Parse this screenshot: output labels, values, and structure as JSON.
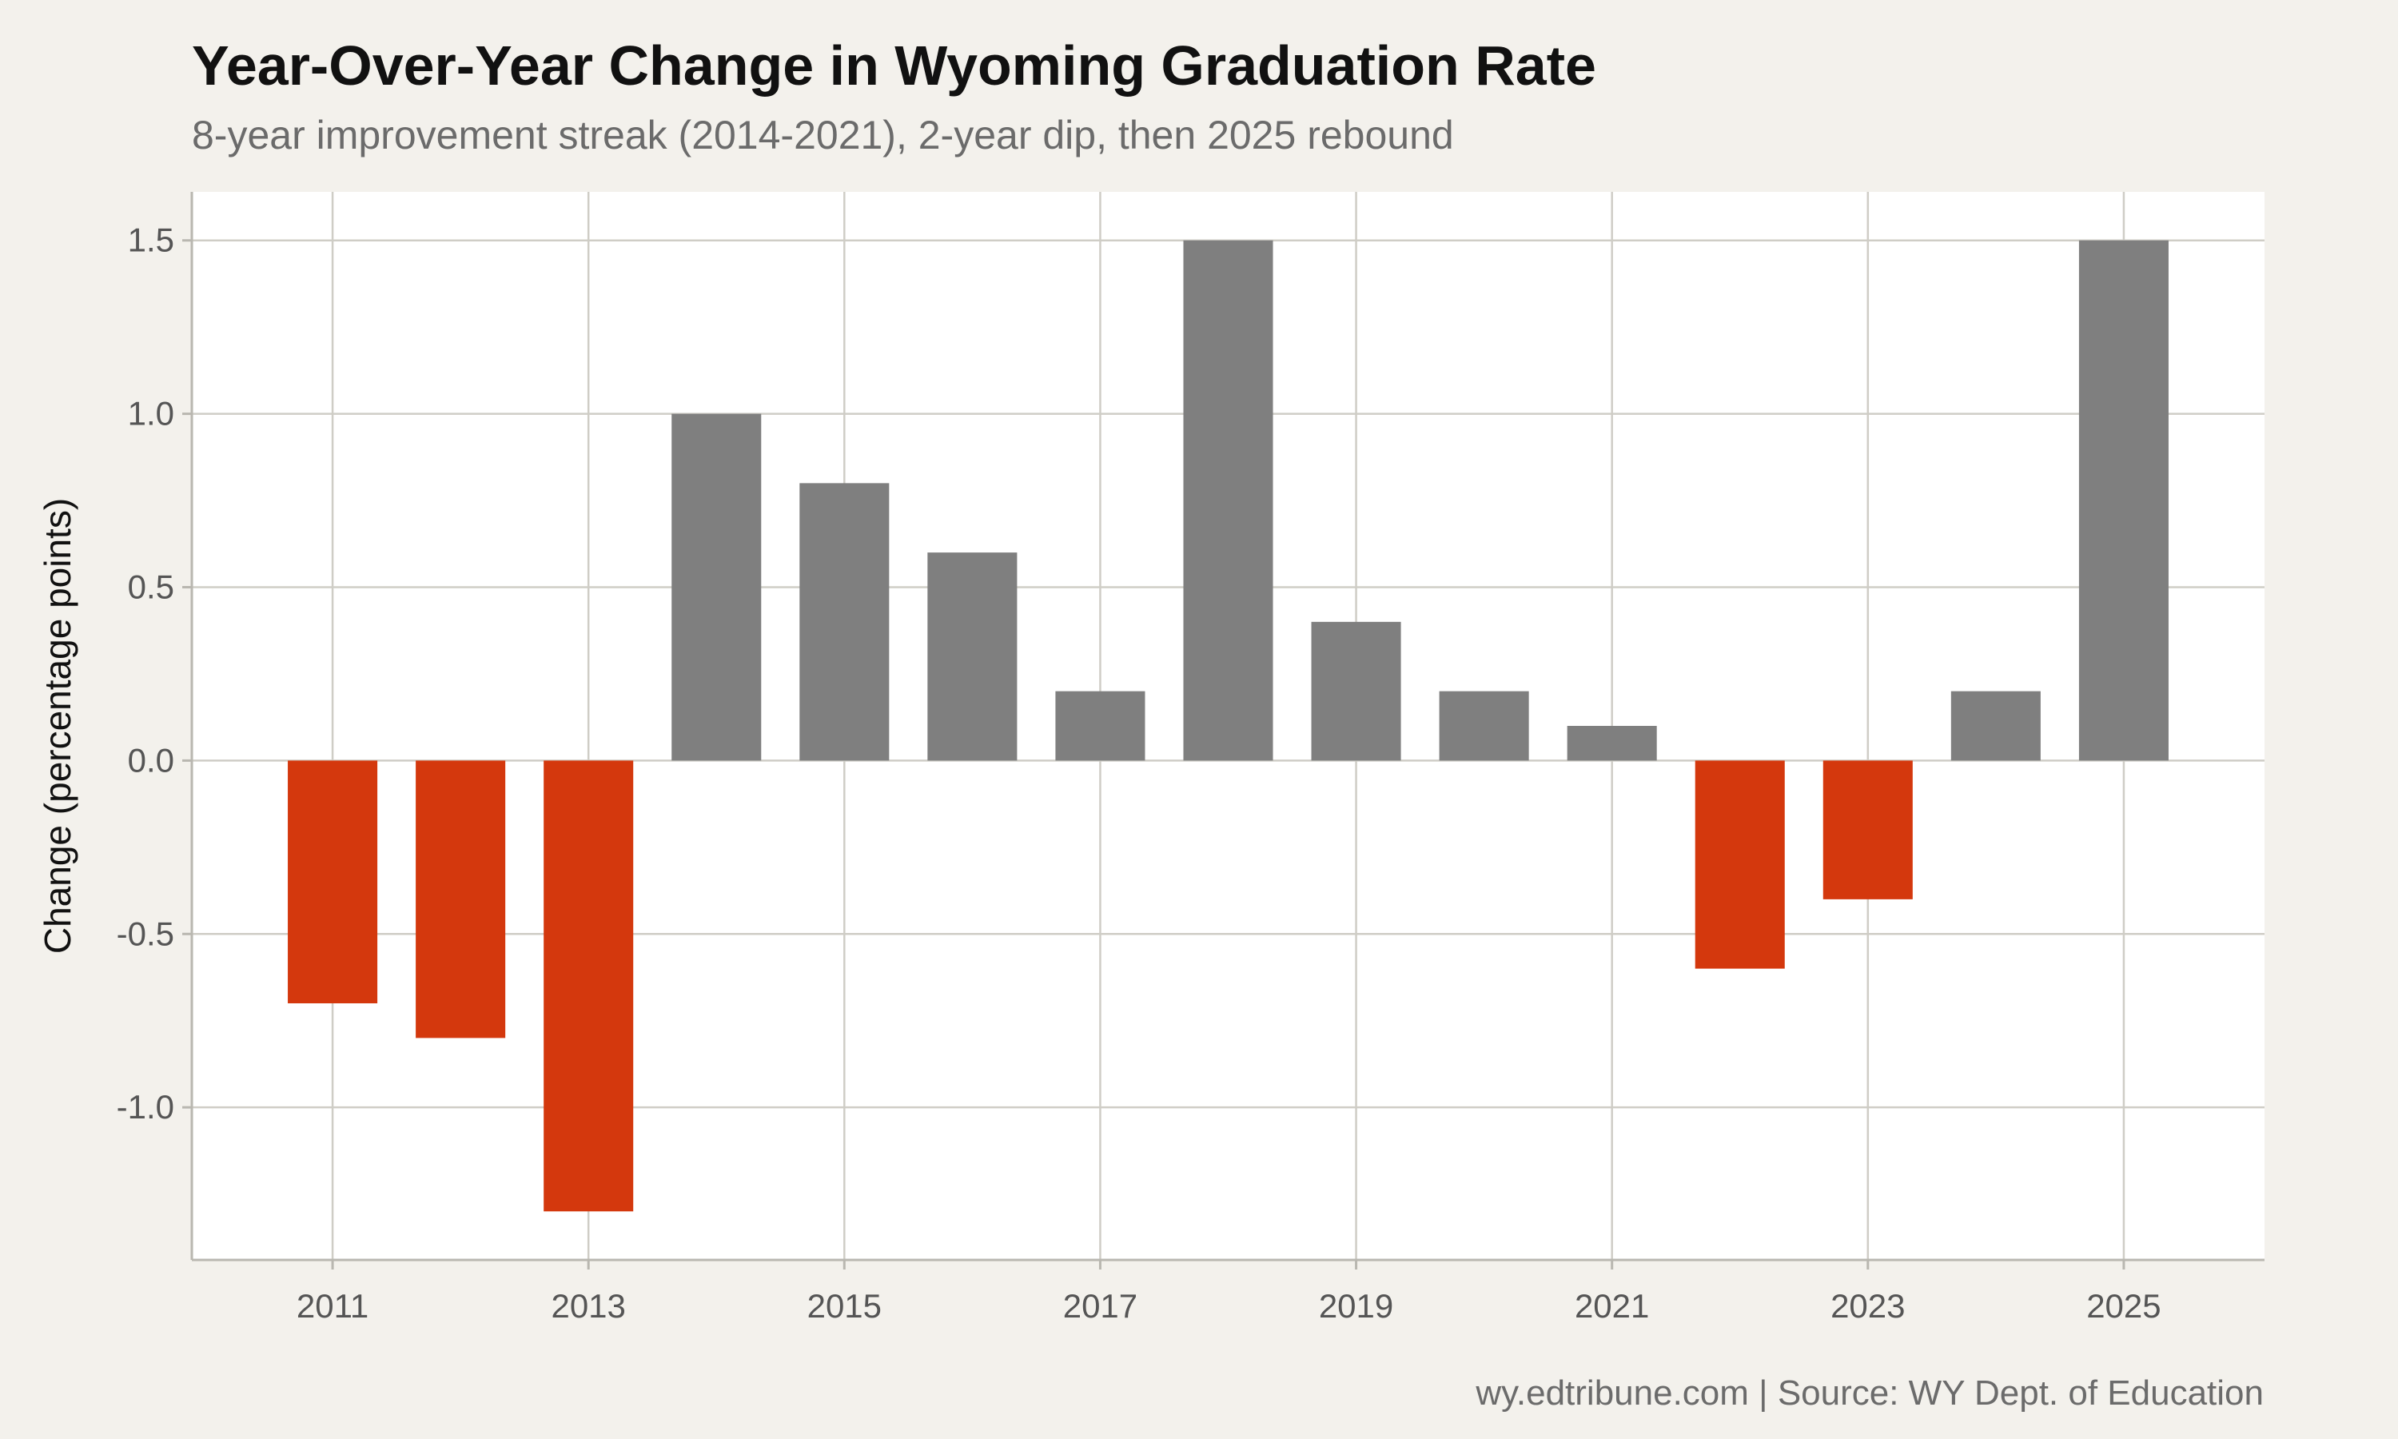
{
  "chart_data": {
    "type": "bar",
    "title": "Year-Over-Year Change in Wyoming Graduation Rate",
    "subtitle": "8-year improvement streak (2014-2021), 2-year dip, then 2025 rebound",
    "caption": "wy.edtribune.com | Source: WY Dept. of Education",
    "xlabel": "",
    "ylabel": "Change (percentage points)",
    "categories": [
      2011,
      2012,
      2013,
      2014,
      2015,
      2016,
      2017,
      2018,
      2019,
      2020,
      2021,
      2022,
      2023,
      2024,
      2025
    ],
    "values": [
      -0.7,
      -0.8,
      -1.3,
      1.0,
      0.8,
      0.6,
      0.2,
      1.5,
      0.4,
      0.2,
      0.1,
      -0.6,
      -0.4,
      0.2,
      1.5
    ],
    "ylim": [
      -1.44,
      1.64
    ],
    "yticks": [
      -1.0,
      -0.5,
      0.0,
      0.5,
      1.0,
      1.5
    ],
    "ytick_labels": [
      "-1.0",
      "-0.5",
      "0.0",
      "0.5",
      "1.0",
      "1.5"
    ],
    "xticks": [
      2011,
      2013,
      2015,
      2017,
      2019,
      2021,
      2023,
      2025
    ],
    "xtick_labels": [
      "2011",
      "2013",
      "2015",
      "2017",
      "2019",
      "2021",
      "2023",
      "2025"
    ],
    "xlim": [
      2009.9,
      2026.1
    ],
    "grid": true,
    "legend": "none",
    "colors": {
      "positive": "#7f7f7f",
      "negative": "#d4380d",
      "background": "#f3f1ec",
      "panel": "#ffffff",
      "grid": "#cfcdc6"
    }
  }
}
